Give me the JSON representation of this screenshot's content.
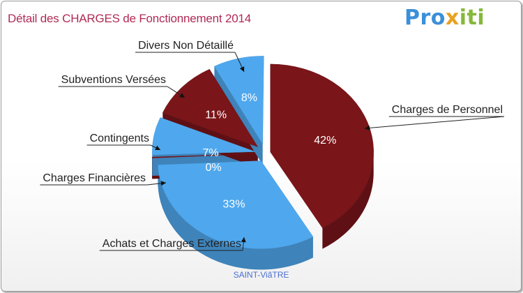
{
  "brand": {
    "name": "Proxiti",
    "parts": [
      "Pro",
      "x",
      "iti"
    ]
  },
  "commune": "SAINT-ViãTRE",
  "chart_data": {
    "type": "pie",
    "title": "Détail des CHARGES de Fonctionnement 2014",
    "slices": [
      {
        "name": "Charges de Personnel",
        "value": 42,
        "label": "42%",
        "color": "#7a1519"
      },
      {
        "name": "Achats et Charges Externes",
        "value": 33,
        "label": "33%",
        "color": "#4fa8ee"
      },
      {
        "name": "Charges Financières",
        "value": 0,
        "label": "0%",
        "color": "#7a1519"
      },
      {
        "name": "Contingents",
        "value": 7,
        "label": "7%",
        "color": "#4fa8ee"
      },
      {
        "name": "Subventions Versées",
        "value": 11,
        "label": "11%",
        "color": "#7a1519"
      },
      {
        "name": "Divers Non Détaillé",
        "value": 8,
        "label": "8%",
        "color": "#4fa8ee"
      }
    ]
  }
}
